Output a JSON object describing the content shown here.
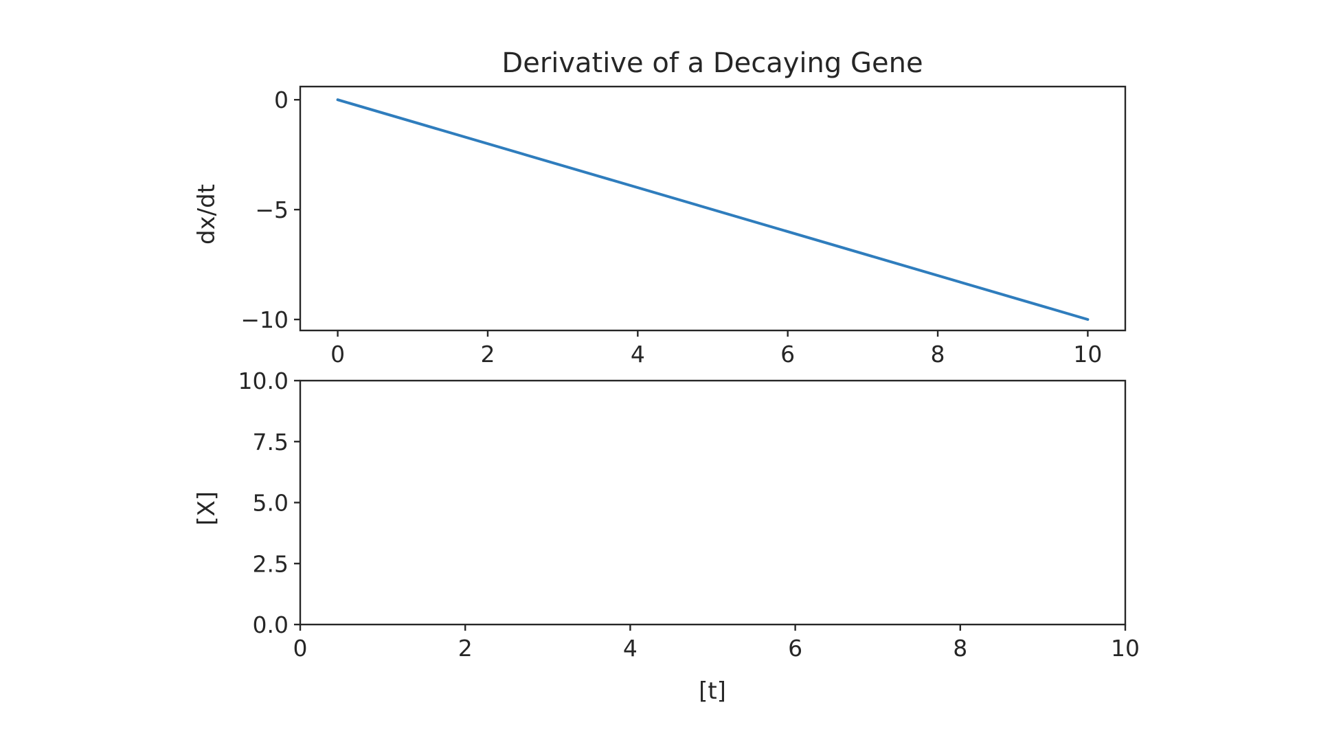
{
  "colors": {
    "series": "#2f7dbd",
    "frame": "#262626"
  },
  "chart_data": [
    {
      "type": "line",
      "title": "Derivative of a Decaying Gene",
      "xlabel": "",
      "ylabel": "dx/dt",
      "xlim": [
        -0.5,
        10.5
      ],
      "ylim": [
        -10.5,
        0.6
      ],
      "xticks": [
        0,
        2,
        4,
        6,
        8,
        10
      ],
      "xtick_labels": [
        "0",
        "2",
        "4",
        "6",
        "8",
        "10"
      ],
      "yticks": [
        0,
        -5,
        -10
      ],
      "ytick_labels": [
        "0",
        "−5",
        "−10"
      ],
      "grid": false,
      "series": [
        {
          "x": [
            0,
            10
          ],
          "y": [
            0,
            -10
          ]
        }
      ]
    },
    {
      "type": "line",
      "title": "",
      "xlabel": "[t]",
      "ylabel": "[X]",
      "xlim": [
        0,
        10
      ],
      "ylim": [
        0,
        10
      ],
      "xticks": [
        0,
        2,
        4,
        6,
        8,
        10
      ],
      "xtick_labels": [
        "0",
        "2",
        "4",
        "6",
        "8",
        "10"
      ],
      "yticks": [
        0,
        2.5,
        5,
        7.5,
        10
      ],
      "ytick_labels": [
        "0.0",
        "2.5",
        "5.0",
        "7.5",
        "10.0"
      ],
      "grid": false,
      "series": []
    }
  ]
}
